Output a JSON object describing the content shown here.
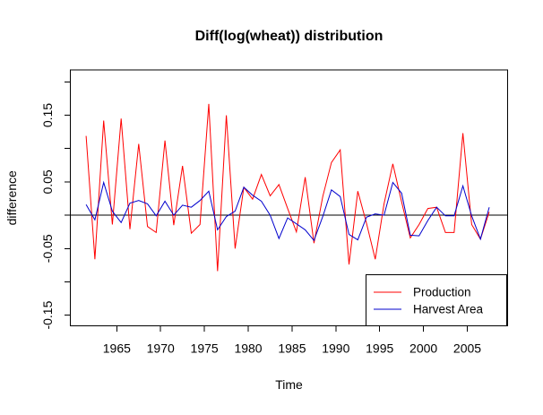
{
  "title": "Diff(log(wheat)) distribution",
  "colors": {
    "production": "#FF0000",
    "harvest_area": "#0000CD",
    "axis": "#000000",
    "background": "#FFFFFF"
  },
  "legend": {
    "entries": [
      {
        "label": "Production",
        "color": "#FF0000"
      },
      {
        "label": "Harvest Area",
        "color": "#0000CD"
      }
    ]
  },
  "chart_data": {
    "type": "line",
    "title": "Diff(log(wheat)) distribution",
    "xlabel": "Time",
    "ylabel": "difference",
    "xlim": [
      1959.7,
      2009.6
    ],
    "ylim": [
      -0.166,
      0.218
    ],
    "x_plot_offset": 0.5,
    "grid": false,
    "zero_line": 0,
    "legend_position": "bottomright",
    "x_ticks": [
      1965,
      1970,
      1975,
      1980,
      1985,
      1990,
      1995,
      2000,
      2005
    ],
    "x_tick_labels": [
      "1965",
      "1970",
      "1975",
      "1980",
      "1985",
      "1990",
      "1995",
      "2000",
      "2005"
    ],
    "y_ticks": [
      {
        "v": -0.15,
        "label": "-0.15"
      },
      {
        "v": -0.1,
        "label": null
      },
      {
        "v": -0.05,
        "label": "-0.05"
      },
      {
        "v": 0.0,
        "label": null
      },
      {
        "v": 0.05,
        "label": "0.05"
      },
      {
        "v": 0.1,
        "label": null
      },
      {
        "v": 0.15,
        "label": "0.15"
      },
      {
        "v": 0.2,
        "label": null
      }
    ],
    "x": [
      1961,
      1962,
      1963,
      1964,
      1965,
      1966,
      1967,
      1968,
      1969,
      1970,
      1971,
      1972,
      1973,
      1974,
      1975,
      1976,
      1977,
      1978,
      1979,
      1980,
      1981,
      1982,
      1983,
      1984,
      1985,
      1986,
      1987,
      1988,
      1989,
      1990,
      1991,
      1992,
      1993,
      1994,
      1995,
      1996,
      1997,
      1998,
      1999,
      2000,
      2001,
      2002,
      2003,
      2004,
      2005,
      2006,
      2007
    ],
    "series": [
      {
        "name": "Production",
        "color": "#FF0000",
        "values": [
          0.119,
          -0.066,
          0.142,
          -0.014,
          0.145,
          -0.021,
          0.107,
          -0.017,
          -0.026,
          0.112,
          -0.015,
          0.074,
          -0.027,
          -0.014,
          0.167,
          -0.084,
          0.15,
          -0.05,
          0.042,
          0.024,
          0.061,
          0.029,
          0.046,
          0.01,
          -0.025,
          0.057,
          -0.042,
          0.028,
          0.079,
          0.098,
          -0.074,
          0.036,
          -0.012,
          -0.066,
          0.017,
          0.077,
          0.02,
          -0.034,
          -0.014,
          0.01,
          0.012,
          -0.026,
          -0.026,
          0.123,
          -0.014,
          -0.036,
          0.005
        ]
      },
      {
        "name": "Harvest Area",
        "color": "#0000CD",
        "values": [
          0.016,
          -0.007,
          0.049,
          0.006,
          -0.011,
          0.018,
          0.022,
          0.017,
          -0.001,
          0.021,
          0.0,
          0.015,
          0.012,
          0.022,
          0.036,
          -0.022,
          -0.002,
          0.006,
          0.042,
          0.03,
          0.021,
          0.0,
          -0.035,
          -0.004,
          -0.013,
          -0.022,
          -0.038,
          -0.002,
          0.038,
          0.028,
          -0.029,
          -0.037,
          -0.003,
          0.002,
          0.0,
          0.049,
          0.033,
          -0.03,
          -0.031,
          -0.008,
          0.012,
          -0.001,
          -0.001,
          0.044,
          -0.001,
          -0.036,
          0.012
        ]
      }
    ]
  }
}
